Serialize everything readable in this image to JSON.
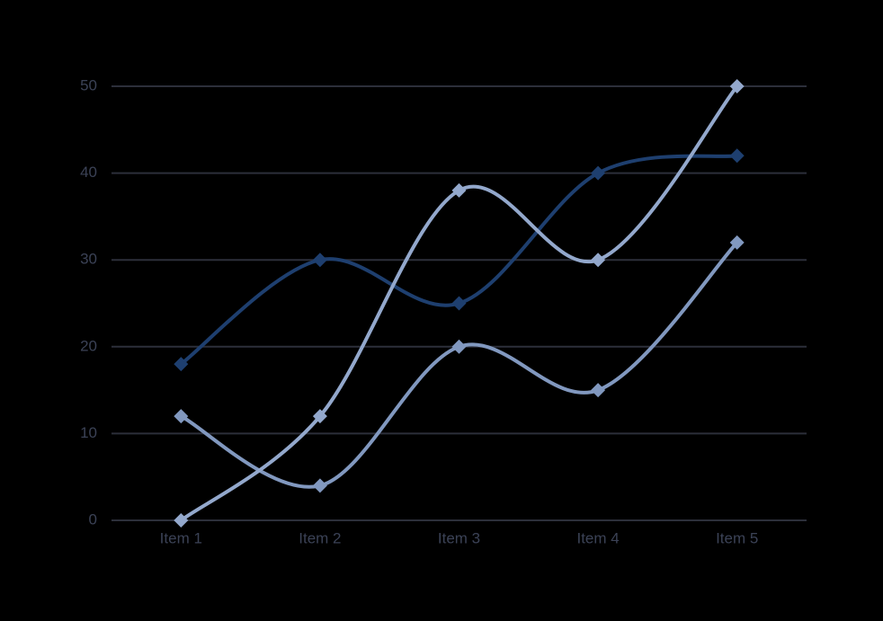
{
  "chart_data": {
    "type": "line",
    "smooth": true,
    "grid": true,
    "categories": [
      "Item 1",
      "Item 2",
      "Item 3",
      "Item 4",
      "Item 5"
    ],
    "series": [
      {
        "color": "#1e3f6f",
        "values": [
          18,
          30,
          25,
          40,
          42
        ]
      },
      {
        "color": "#8198bf",
        "values": [
          12,
          4,
          20,
          15,
          32
        ]
      },
      {
        "color": "#93a8cc",
        "values": [
          0,
          12,
          38,
          30,
          50
        ]
      }
    ],
    "ylim": [
      0,
      50
    ],
    "yticks": [
      0,
      10,
      20,
      30,
      40,
      50
    ]
  }
}
